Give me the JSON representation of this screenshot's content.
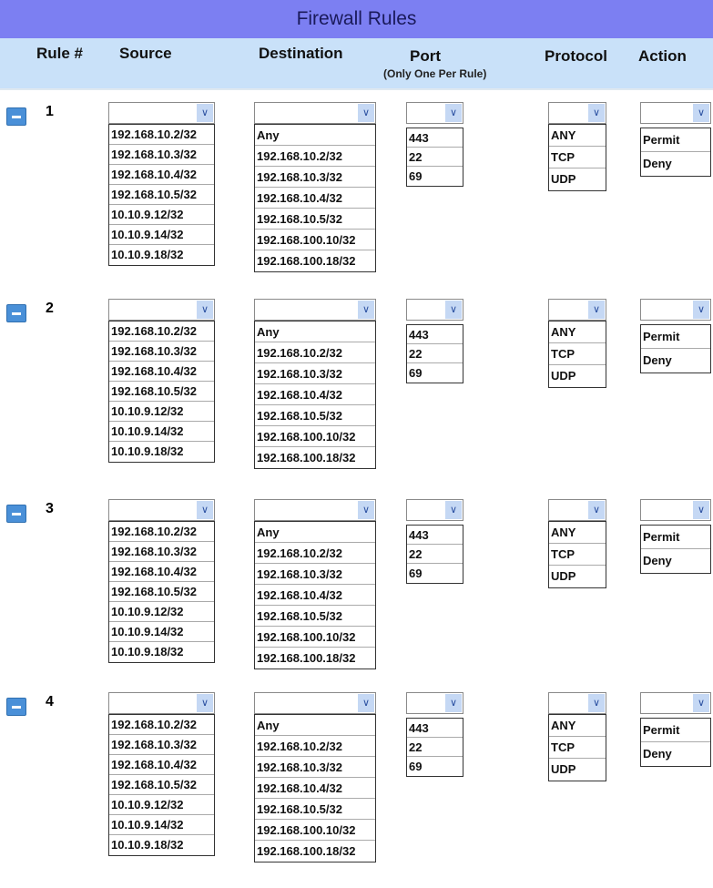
{
  "title": "Firewall Rules",
  "headers": {
    "rule": "Rule #",
    "source": "Source",
    "destination": "Destination",
    "port": "Port",
    "port_note": "(Only One Per Rule)",
    "protocol": "Protocol",
    "action": "Action"
  },
  "rules": [
    {
      "number": "1"
    },
    {
      "number": "2"
    },
    {
      "number": "3"
    },
    {
      "number": "4"
    }
  ],
  "options": {
    "source": [
      "192.168.10.2/32",
      "192.168.10.3/32",
      "192.168.10.4/32",
      "192.168.10.5/32",
      "10.10.9.12/32",
      "10.10.9.14/32",
      "10.10.9.18/32"
    ],
    "destination": [
      "Any",
      "192.168.10.2/32",
      "192.168.10.3/32",
      "192.168.10.4/32",
      "192.168.10.5/32",
      "192.168.100.10/32",
      "192.168.100.18/32"
    ],
    "port": [
      "443",
      "22",
      "69"
    ],
    "protocol": [
      "ANY",
      "TCP",
      "UDP"
    ],
    "action": [
      "Permit",
      "Deny"
    ]
  },
  "icons": {
    "remove": "minus-icon",
    "dropdown": "chevron-down-icon"
  }
}
